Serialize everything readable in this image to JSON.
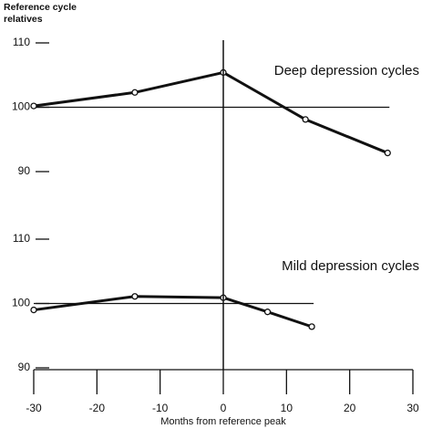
{
  "chart_data": [
    {
      "type": "line",
      "ylabel": "Reference cycle relatives",
      "annotation": "Deep depression cycles",
      "x": [
        -30,
        -14,
        0,
        13,
        26
      ],
      "values": [
        100.2,
        102.3,
        105.4,
        98.1,
        92.9
      ],
      "color": "#111111",
      "ylim": [
        90,
        110
      ],
      "yticks": [
        90,
        100,
        110
      ],
      "reference_line": 100
    },
    {
      "type": "line",
      "annotation": "Mild depression cycles",
      "x": [
        -30,
        -14,
        0,
        7,
        14
      ],
      "values": [
        99.0,
        101.1,
        100.9,
        98.7,
        96.4
      ],
      "color": "#111111",
      "ylim": [
        90,
        110
      ],
      "yticks": [
        90,
        100,
        110
      ],
      "reference_line": 100,
      "xlabel": "Months from reference peak",
      "xlim": [
        -30,
        30
      ],
      "xticks": [
        -30,
        -20,
        -10,
        0,
        10,
        20,
        30
      ],
      "vline": 0
    }
  ]
}
